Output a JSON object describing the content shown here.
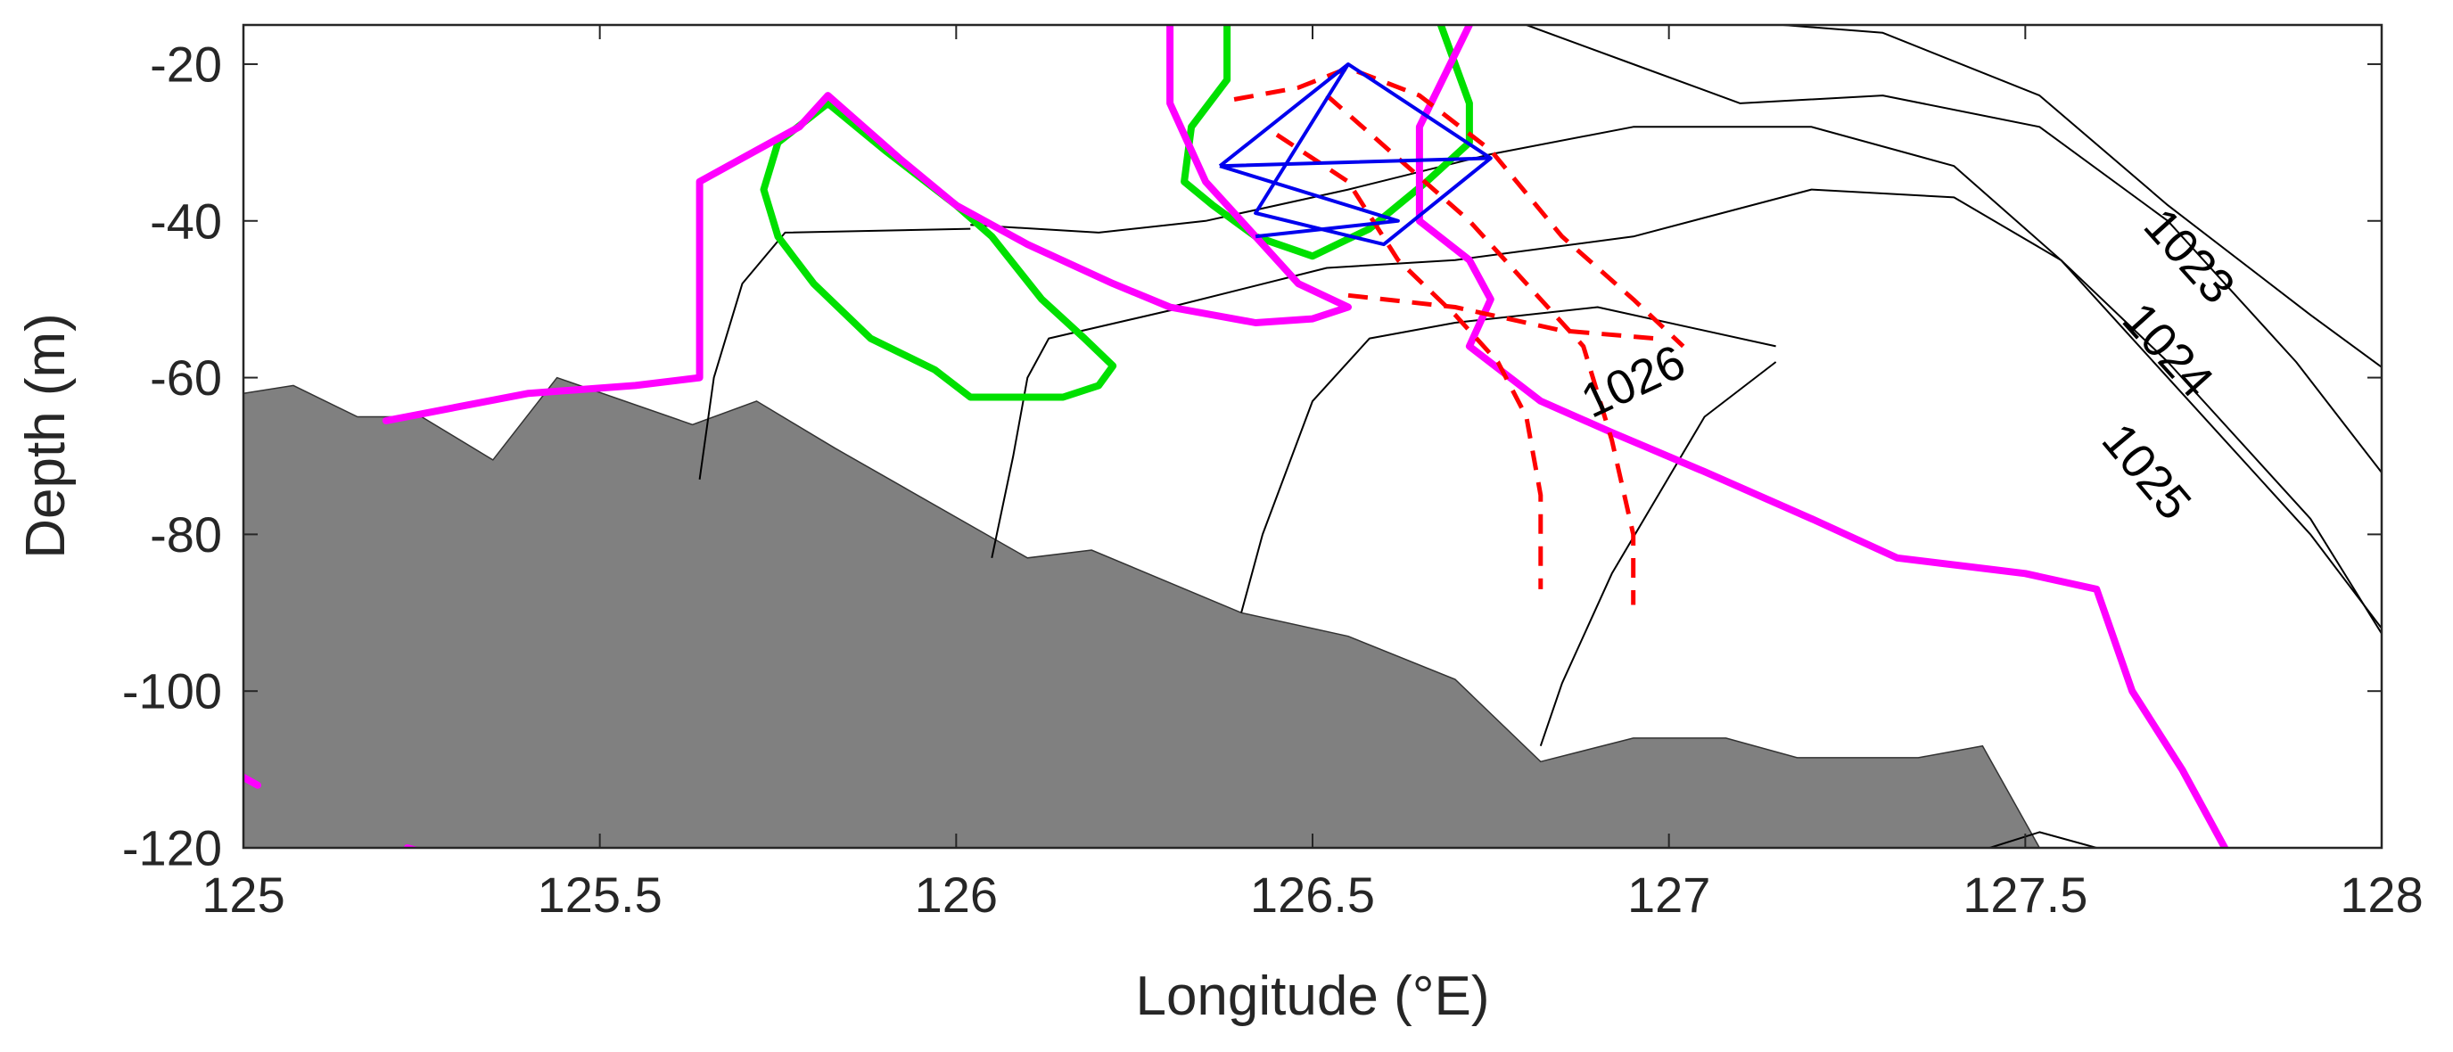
{
  "chart_data": {
    "type": "contour",
    "title": "",
    "xlabel": "Longitude (°E)",
    "ylabel": "Depth (m)",
    "xlim": [
      125,
      128
    ],
    "ylim": [
      -120,
      -15
    ],
    "x_ticks": [
      125,
      125.5,
      126,
      126.5,
      127,
      127.5,
      128
    ],
    "x_tick_labels": [
      "125",
      "125.5",
      "126",
      "126.5",
      "127",
      "127.5",
      "128"
    ],
    "y_ticks": [
      -20,
      -40,
      -60,
      -80,
      -100,
      -120
    ],
    "y_tick_labels": [
      "-20",
      "-40",
      "-60",
      "-80",
      "-100",
      "-120"
    ],
    "grid": false,
    "colors": {
      "bathymetry": "#808080",
      "density_contour": "#000000",
      "magenta_line": "#ff00ff",
      "green_line": "#00e000",
      "blue_line": "#0000ee",
      "red_dashed_line": "#ff0000"
    },
    "bathymetry": [
      [
        125,
        -62
      ],
      [
        125.07,
        -61
      ],
      [
        125.16,
        -65
      ],
      [
        125.25,
        -65
      ],
      [
        125.35,
        -70.5
      ],
      [
        125.44,
        -60
      ],
      [
        125.63,
        -66
      ],
      [
        125.72,
        -63
      ],
      [
        125.83,
        -69
      ],
      [
        126.1,
        -83
      ],
      [
        126.19,
        -82
      ],
      [
        126.4,
        -90
      ],
      [
        126.55,
        -93
      ],
      [
        126.7,
        -98.5
      ],
      [
        126.82,
        -109
      ],
      [
        126.95,
        -106
      ],
      [
        127.08,
        -106
      ],
      [
        127.18,
        -108.5
      ],
      [
        127.35,
        -108.5
      ],
      [
        127.44,
        -107
      ],
      [
        127.52,
        -120
      ],
      [
        125,
        -120
      ]
    ],
    "density_contours": [
      {
        "label": "1023",
        "points": [
          [
            127.16,
            -15
          ],
          [
            127.3,
            -16
          ],
          [
            127.52,
            -24
          ],
          [
            127.7,
            -38
          ],
          [
            127.9,
            -52
          ],
          [
            128.08,
            -64
          ],
          [
            128.28,
            -72
          ]
        ]
      },
      {
        "label": "1024",
        "points": [
          [
            126.8,
            -15
          ],
          [
            126.95,
            -20
          ],
          [
            127.1,
            -25
          ],
          [
            127.3,
            -24
          ],
          [
            127.52,
            -28
          ],
          [
            127.7,
            -40
          ],
          [
            127.88,
            -58
          ],
          [
            128.05,
            -78
          ],
          [
            128.28,
            -98
          ]
        ]
      },
      {
        "label": "1025",
        "points": [
          [
            126.02,
            -40.5
          ],
          [
            126.2,
            -41.5
          ],
          [
            126.35,
            -40
          ],
          [
            126.55,
            -36
          ],
          [
            126.75,
            -31.5
          ],
          [
            126.95,
            -28
          ],
          [
            127.2,
            -28
          ],
          [
            127.4,
            -33
          ],
          [
            127.55,
            -45
          ],
          [
            127.72,
            -62
          ],
          [
            127.9,
            -80
          ],
          [
            128.05,
            -98
          ],
          [
            128.25,
            -118
          ],
          [
            128.25,
            -120
          ]
        ]
      },
      {
        "label": "1026",
        "points": [
          [
            126.3,
            -51
          ],
          [
            126.52,
            -46
          ],
          [
            126.7,
            -45
          ],
          [
            126.95,
            -42
          ],
          [
            127.2,
            -36
          ],
          [
            127.4,
            -37
          ],
          [
            127.55,
            -45
          ],
          [
            127.7,
            -58
          ],
          [
            127.9,
            -78
          ],
          [
            128.05,
            -100
          ],
          [
            128.18,
            -120
          ]
        ]
      },
      {
        "label": "",
        "points": [
          [
            125.64,
            -73
          ],
          [
            125.66,
            -60
          ],
          [
            125.7,
            -48
          ],
          [
            125.76,
            -41.5
          ],
          [
            126.02,
            -41
          ]
        ]
      },
      {
        "label": "",
        "points": [
          [
            126.05,
            -83
          ],
          [
            126.08,
            -70
          ],
          [
            126.1,
            -60
          ],
          [
            126.13,
            -55
          ],
          [
            126.32,
            -51
          ]
        ]
      },
      {
        "label": "",
        "points": [
          [
            126.4,
            -90
          ],
          [
            126.43,
            -80
          ],
          [
            126.5,
            -63
          ],
          [
            126.58,
            -55
          ],
          [
            126.7,
            -53
          ],
          [
            126.9,
            -51
          ],
          [
            127.15,
            -56
          ]
        ]
      },
      {
        "label": "",
        "points": [
          [
            126.82,
            -107
          ],
          [
            126.85,
            -99
          ],
          [
            126.92,
            -85
          ],
          [
            127.05,
            -65
          ],
          [
            127.15,
            -58
          ]
        ]
      },
      {
        "label": "",
        "points": [
          [
            127.45,
            -120
          ],
          [
            127.52,
            -118
          ],
          [
            127.6,
            -120
          ]
        ]
      }
    ],
    "contour_labels": [
      {
        "text": "1023",
        "x": 127.73,
        "y": -44.5,
        "angle": 48
      },
      {
        "text": "1024",
        "x": 127.7,
        "y": -56.5,
        "angle": 48
      },
      {
        "text": "1025",
        "x": 127.67,
        "y": -72,
        "angle": 50
      },
      {
        "text": "1026",
        "x": 126.95,
        "y": -60.5,
        "angle": -25
      }
    ],
    "magenta_lines": [
      [
        [
          125.2,
          -65.5
        ],
        [
          125.4,
          -62
        ],
        [
          125.55,
          -61
        ],
        [
          125.64,
          -60
        ],
        [
          125.64,
          -35
        ],
        [
          125.7,
          -32
        ],
        [
          125.78,
          -28
        ],
        [
          125.82,
          -24
        ],
        [
          125.92,
          -32
        ],
        [
          126.0,
          -38
        ],
        [
          126.1,
          -43
        ],
        [
          126.22,
          -48
        ],
        [
          126.3,
          -51
        ],
        [
          126.42,
          -53
        ],
        [
          126.5,
          -52.5
        ],
        [
          126.55,
          -51
        ],
        [
          126.48,
          -48
        ],
        [
          126.42,
          -42
        ],
        [
          126.35,
          -35
        ],
        [
          126.3,
          -25
        ],
        [
          126.3,
          -15
        ]
      ],
      [
        [
          126.72,
          -15
        ],
        [
          126.65,
          -28
        ],
        [
          126.65,
          -40
        ],
        [
          126.72,
          -45
        ],
        [
          126.75,
          -50
        ],
        [
          126.72,
          -56
        ],
        [
          126.82,
          -63
        ],
        [
          126.92,
          -67
        ],
        [
          127.05,
          -72
        ],
        [
          127.2,
          -78
        ],
        [
          127.32,
          -83
        ],
        [
          127.5,
          -85
        ],
        [
          127.6,
          -87
        ],
        [
          127.65,
          -100
        ],
        [
          127.72,
          -110
        ],
        [
          127.78,
          -120
        ]
      ],
      [
        [
          125.0,
          -111
        ],
        [
          125.02,
          -112
        ]
      ],
      [
        [
          125.23,
          -120
        ],
        [
          125.25,
          -120.5
        ]
      ]
    ],
    "green_lines": [
      [
        [
          125.82,
          -25
        ],
        [
          125.9,
          -31
        ],
        [
          126.0,
          -38
        ],
        [
          126.05,
          -42
        ],
        [
          126.12,
          -50
        ],
        [
          126.18,
          -55
        ],
        [
          126.22,
          -58.5
        ],
        [
          126.2,
          -61
        ],
        [
          126.15,
          -62.5
        ],
        [
          126.02,
          -62.5
        ],
        [
          125.97,
          -59
        ],
        [
          125.88,
          -55
        ],
        [
          125.8,
          -48
        ],
        [
          125.75,
          -42
        ],
        [
          125.73,
          -36
        ],
        [
          125.75,
          -30
        ],
        [
          125.82,
          -25
        ]
      ],
      [
        [
          126.38,
          -15
        ],
        [
          126.38,
          -22
        ],
        [
          126.33,
          -28
        ],
        [
          126.32,
          -35
        ],
        [
          126.36,
          -38
        ],
        [
          126.42,
          -42
        ],
        [
          126.5,
          -44.5
        ],
        [
          126.58,
          -41
        ],
        [
          126.66,
          -35
        ],
        [
          126.72,
          -30
        ],
        [
          126.72,
          -25
        ],
        [
          126.68,
          -15
        ]
      ]
    ],
    "blue_lines": [
      [
        [
          126.37,
          -33
        ],
        [
          126.55,
          -20
        ],
        [
          126.75,
          -32
        ],
        [
          126.37,
          -33
        ]
      ],
      [
        [
          126.55,
          -20
        ],
        [
          126.42,
          -39
        ],
        [
          126.6,
          -43
        ],
        [
          126.75,
          -32
        ]
      ],
      [
        [
          126.37,
          -33
        ],
        [
          126.62,
          -40
        ],
        [
          126.42,
          -42
        ]
      ]
    ],
    "red_dashed_lines": [
      [
        [
          126.39,
          -24.5
        ],
        [
          126.48,
          -23
        ],
        [
          126.55,
          -20.5
        ],
        [
          126.65,
          -24
        ],
        [
          126.75,
          -31
        ],
        [
          126.85,
          -42
        ],
        [
          126.95,
          -50
        ],
        [
          127.02,
          -56
        ]
      ],
      [
        [
          126.45,
          -29
        ],
        [
          126.55,
          -35
        ],
        [
          126.62,
          -45
        ],
        [
          126.7,
          -52
        ],
        [
          126.76,
          -58
        ],
        [
          126.8,
          -65
        ],
        [
          126.82,
          -75
        ],
        [
          126.82,
          -87
        ]
      ],
      [
        [
          126.52,
          -24
        ],
        [
          126.62,
          -32
        ],
        [
          126.72,
          -40
        ],
        [
          126.82,
          -50
        ],
        [
          126.88,
          -56
        ],
        [
          126.92,
          -68
        ],
        [
          126.95,
          -80
        ],
        [
          126.95,
          -89
        ]
      ],
      [
        [
          126.55,
          -49.5
        ],
        [
          126.7,
          -51
        ],
        [
          126.85,
          -54
        ],
        [
          126.98,
          -55
        ]
      ]
    ]
  }
}
